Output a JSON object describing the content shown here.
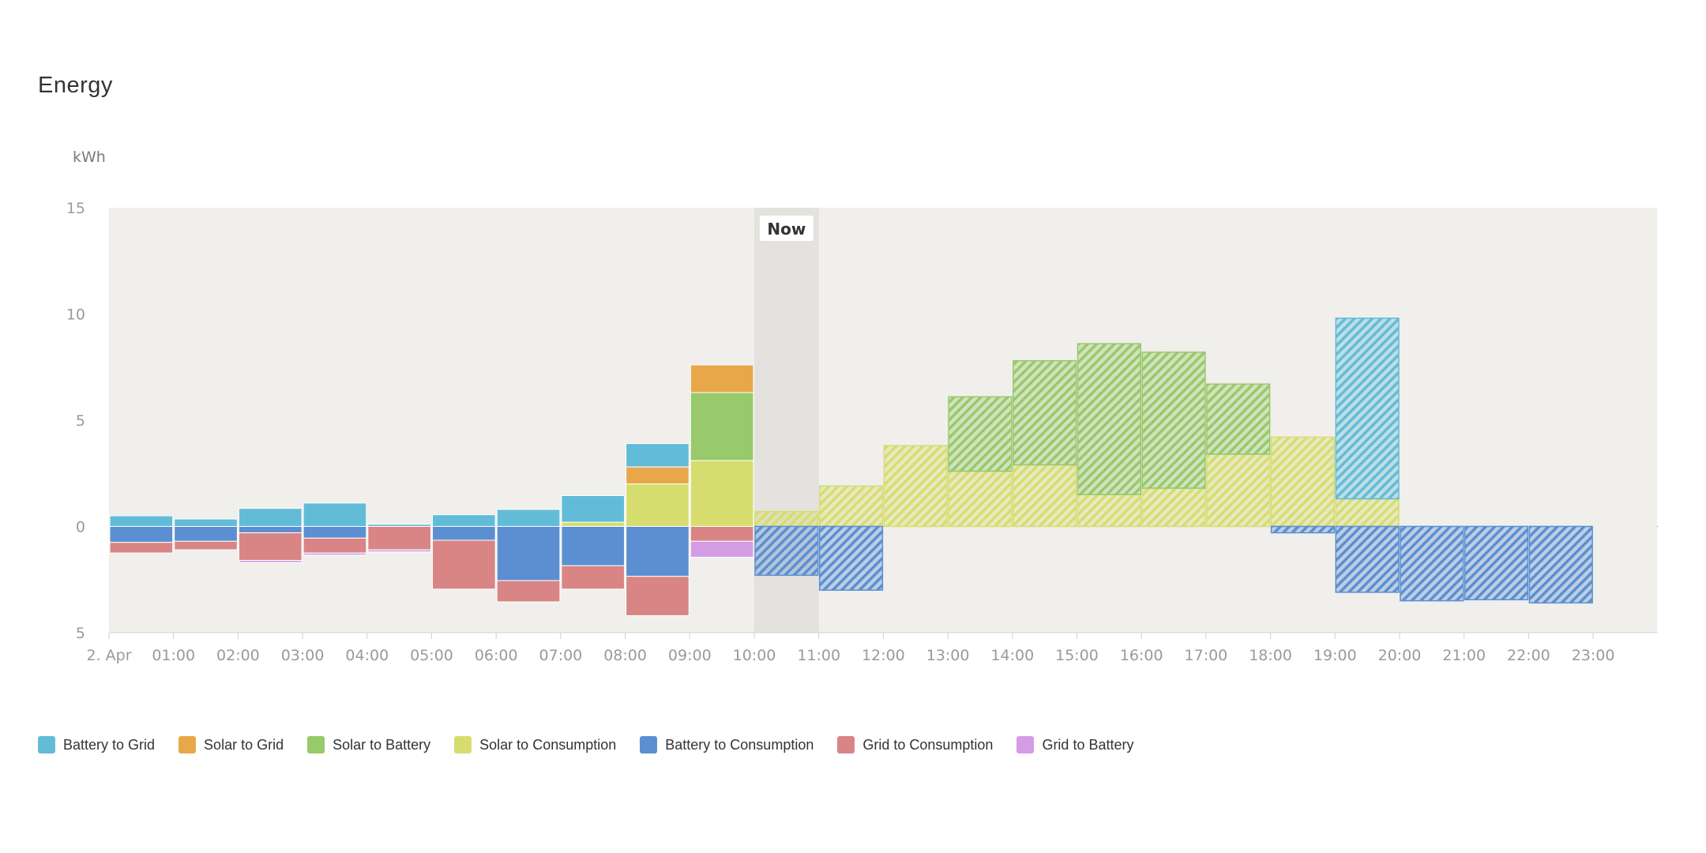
{
  "title": "Energy",
  "chart_data": {
    "type": "bar",
    "stacked": true,
    "unit": "kWh",
    "ylim": [
      -5,
      15
    ],
    "y_ticks": [
      15,
      10,
      5,
      0,
      -5
    ],
    "y_tick_labels": [
      "15",
      "10",
      "5",
      "0",
      "5"
    ],
    "x_labels": [
      "2. Apr",
      "01:00",
      "02:00",
      "03:00",
      "04:00",
      "05:00",
      "06:00",
      "07:00",
      "08:00",
      "09:00",
      "10:00",
      "11:00",
      "12:00",
      "13:00",
      "14:00",
      "15:00",
      "16:00",
      "17:00",
      "18:00",
      "19:00",
      "20:00",
      "21:00",
      "22:00",
      "23:00"
    ],
    "hours": 24,
    "now": {
      "label": "Now",
      "hour": 10
    },
    "forecast_from_hour": 10,
    "colors": {
      "battery_to_grid": "#62bcd7",
      "solar_to_grid": "#e8a84a",
      "solar_to_battery": "#98c96a",
      "solar_to_consumption": "#d6dd6e",
      "battery_to_consumption": "#5b8fd1",
      "grid_to_consumption": "#d98585",
      "grid_to_battery": "#d59ce6"
    },
    "series": [
      {
        "key": "solar_to_consumption",
        "name": "Solar to Consumption",
        "direction": "up",
        "values": [
          0,
          0,
          0,
          0,
          0,
          0,
          0,
          0.2,
          2.0,
          3.1,
          0.7,
          1.9,
          3.8,
          2.6,
          2.9,
          1.5,
          1.8,
          3.4,
          4.2,
          1.3,
          0,
          0,
          0,
          0
        ]
      },
      {
        "key": "solar_to_battery",
        "name": "Solar to Battery",
        "direction": "up",
        "values": [
          0,
          0,
          0,
          0,
          0,
          0,
          0,
          0,
          0,
          3.2,
          0,
          0,
          0,
          3.5,
          4.9,
          7.1,
          6.4,
          3.3,
          0,
          0,
          0,
          0,
          0,
          0
        ]
      },
      {
        "key": "solar_to_grid",
        "name": "Solar to Grid",
        "direction": "up",
        "values": [
          0,
          0,
          0,
          0,
          0,
          0,
          0,
          0,
          0.8,
          1.3,
          0,
          0,
          0,
          0,
          0,
          0,
          0,
          0,
          0,
          0,
          0,
          0,
          0,
          0
        ]
      },
      {
        "key": "battery_to_grid",
        "name": "Battery to Grid",
        "direction": "up",
        "values": [
          0.5,
          0.35,
          0.85,
          1.1,
          0.1,
          0.55,
          0.8,
          1.25,
          1.1,
          0,
          0,
          0,
          0,
          0,
          0,
          0,
          0,
          0,
          0,
          8.5,
          0,
          0,
          0,
          0
        ]
      },
      {
        "key": "battery_to_consumption",
        "name": "Battery to Consumption",
        "direction": "down",
        "values": [
          0.75,
          0.7,
          0.3,
          0.55,
          0,
          0.65,
          2.55,
          1.85,
          2.35,
          0,
          2.3,
          3.0,
          0,
          0,
          0,
          0,
          0,
          0,
          0.3,
          3.1,
          3.5,
          3.45,
          3.6,
          0
        ]
      },
      {
        "key": "grid_to_consumption",
        "name": "Grid to Consumption",
        "direction": "down",
        "values": [
          0.5,
          0.4,
          1.3,
          0.7,
          1.1,
          2.3,
          1.0,
          1.1,
          1.85,
          0.7,
          0,
          0,
          0,
          0,
          0,
          0,
          0,
          0,
          0,
          0,
          0,
          0,
          0,
          0
        ]
      },
      {
        "key": "grid_to_battery",
        "name": "Grid to Battery",
        "direction": "down",
        "values": [
          0,
          0,
          0.1,
          0.1,
          0.1,
          0,
          0,
          0,
          0,
          0.75,
          0,
          0,
          0,
          0,
          0,
          0,
          0,
          0,
          0,
          0,
          0,
          0,
          0,
          0
        ]
      }
    ],
    "legend": [
      {
        "key": "battery_to_grid",
        "label": "Battery to Grid"
      },
      {
        "key": "solar_to_grid",
        "label": "Solar to Grid"
      },
      {
        "key": "solar_to_battery",
        "label": "Solar to Battery"
      },
      {
        "key": "solar_to_consumption",
        "label": "Solar to Consumption"
      },
      {
        "key": "battery_to_consumption",
        "label": "Battery to Consumption"
      },
      {
        "key": "grid_to_consumption",
        "label": "Grid to Consumption"
      },
      {
        "key": "grid_to_battery",
        "label": "Grid to Battery"
      }
    ],
    "legend_position": "bottom-left"
  }
}
